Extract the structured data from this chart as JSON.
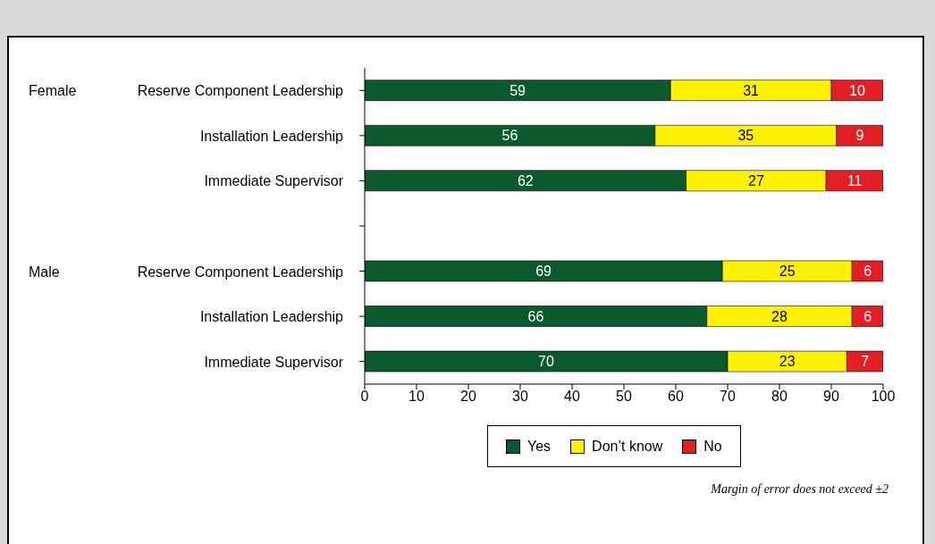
{
  "chart_data": {
    "type": "bar",
    "orientation": "horizontal",
    "stacked": true,
    "categories": [
      "Reserve Component Leadership",
      "Installation Leadership",
      "Immediate Supervisor",
      null,
      "Reserve Component Leadership",
      "Installation Leadership",
      "Immediate Supervisor"
    ],
    "series": [
      {
        "name": "Yes",
        "color": "#0b5a2d",
        "values": [
          59,
          56,
          62,
          null,
          69,
          66,
          70
        ]
      },
      {
        "name": "Don’t know",
        "color": "#fff200",
        "values": [
          31,
          35,
          27,
          null,
          25,
          28,
          23
        ]
      },
      {
        "name": "No",
        "color": "#e31e24",
        "values": [
          10,
          9,
          11,
          null,
          6,
          6,
          7
        ]
      }
    ],
    "xlim": [
      0,
      100
    ],
    "xticks": [
      0,
      10,
      20,
      30,
      40,
      50,
      60,
      70,
      80,
      90,
      100
    ],
    "data_labels": true,
    "legend": "bottom",
    "grid": false,
    "annotations": [
      "Female",
      "Male",
      "Margin of error does not exceed ±2"
    ]
  }
}
